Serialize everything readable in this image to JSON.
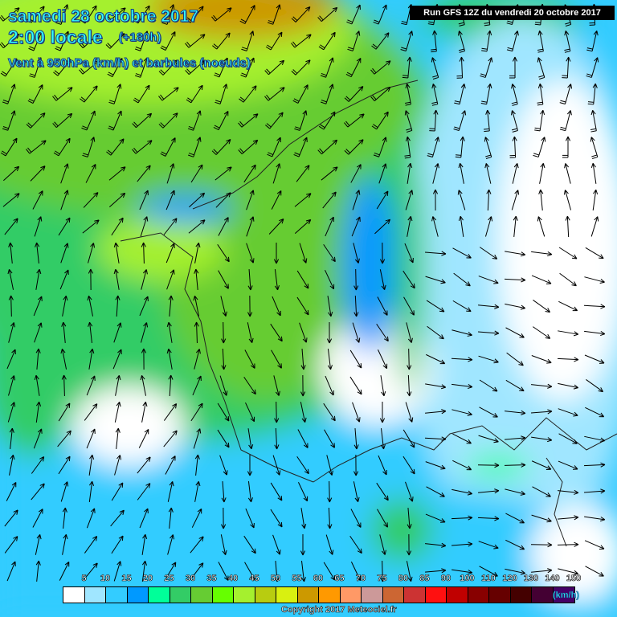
{
  "header": {
    "date": "samedi 28 octobre 2017",
    "time": "2:00 locale",
    "lead": "(+180h)",
    "field": "Vent à 950hPa (km/h) et barbules (noeuds)",
    "run": "Run GFS 12Z du vendredi 20 octobre 2017"
  },
  "legend": {
    "unit": "(km/h)",
    "labels": [
      "5",
      "10",
      "15",
      "20",
      "25",
      "30",
      "35",
      "40",
      "45",
      "50",
      "55",
      "60",
      "65",
      "70",
      "75",
      "80",
      "85",
      "90",
      "100",
      "110",
      "120",
      "130",
      "140",
      "150"
    ],
    "colors": [
      "#ffffff",
      "#a0e6ff",
      "#33ccff",
      "#0099ff",
      "#00ff99",
      "#33cc66",
      "#66cc33",
      "#66ff00",
      "#a5f02e",
      "#b8cc10",
      "#d9f010",
      "#cc9900",
      "#ff9900",
      "#ff9966",
      "#cc9999",
      "#cc6633",
      "#cc3333",
      "#ff1010",
      "#c00000",
      "#880000",
      "#660000",
      "#440000",
      "#440033",
      "#440066"
    ]
  },
  "copyright": "Copyright 2017 Meteociel.fr"
}
